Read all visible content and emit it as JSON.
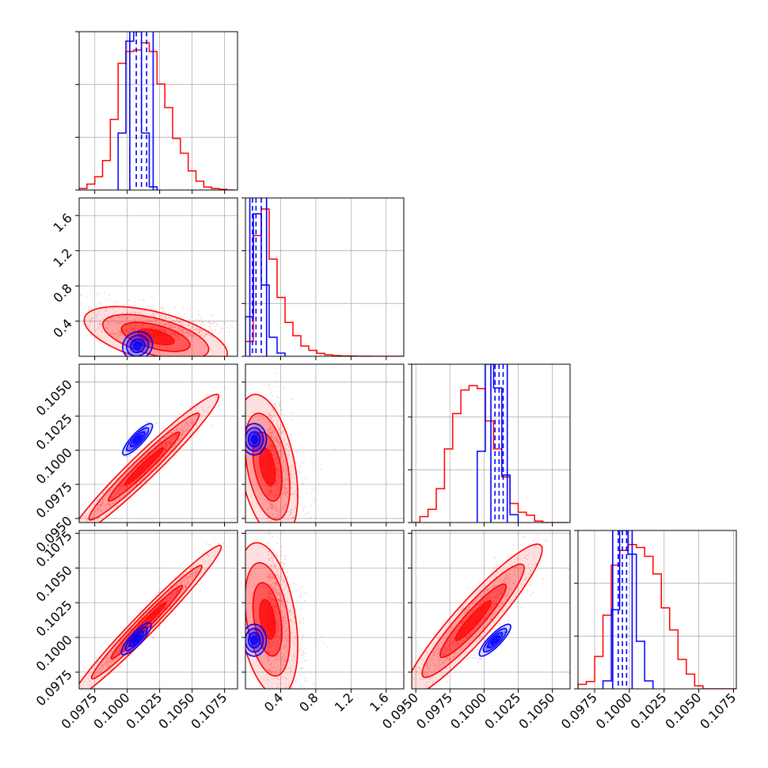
{
  "chart_data": {
    "type": "scatter",
    "layout": "corner-plot",
    "n_parameters": 4,
    "grid": true,
    "colors": {
      "sample_a": "#ff0000",
      "sample_b": "#0000ff",
      "quantile_lines": "#0000ff"
    },
    "axes": [
      {
        "label": "",
        "range": [
          0.0963,
          0.1085
        ],
        "ticks": [
          0.0975,
          0.1,
          0.1025,
          0.105,
          0.1075
        ],
        "tick_labels": [
          "0.0975",
          "0.1000",
          "0.1025",
          "0.1050",
          "0.1075"
        ]
      },
      {
        "label": "",
        "range": [
          0.0,
          1.8
        ],
        "ticks": [
          0.4,
          0.8,
          1.2,
          1.6
        ],
        "tick_labels": [
          "0.4",
          "0.8",
          "1.2",
          "1.6"
        ]
      },
      {
        "label": "",
        "range": [
          0.0947,
          0.1063
        ],
        "ticks": [
          0.095,
          0.0975,
          0.1,
          0.1025,
          0.105
        ],
        "tick_labels": [
          "0.0950",
          "0.0975",
          "0.1000",
          "0.1025",
          "0.1050"
        ]
      },
      {
        "label": "",
        "range": [
          0.0963,
          0.1077
        ],
        "ticks": [
          0.0975,
          0.1,
          0.1025,
          0.105,
          0.1075
        ],
        "tick_labels": [
          "0.0975",
          "0.1000",
          "0.1025",
          "0.1050",
          "0.1075"
        ]
      }
    ],
    "histograms": [
      {
        "param": 0,
        "red": {
          "edges": [
            0.0963,
            0.0969,
            0.0975,
            0.0981,
            0.0987,
            0.0993,
            0.0999,
            0.1005,
            0.1011,
            0.1017,
            0.1023,
            0.1029,
            0.1035,
            0.1041,
            0.1047,
            0.1053,
            0.1059,
            0.1065,
            0.1071,
            0.1077,
            0.1083
          ],
          "counts": [
            0.01,
            0.04,
            0.09,
            0.2,
            0.48,
            0.86,
            0.94,
            0.95,
            1.0,
            0.94,
            0.72,
            0.56,
            0.35,
            0.25,
            0.13,
            0.06,
            0.02,
            0.01,
            0.005,
            0.0
          ]
        },
        "blue": {
          "edges": [
            0.0993,
            0.0999,
            0.1005,
            0.1011,
            0.1017,
            0.1023
          ],
          "counts": [
            0.36,
            0.94,
            1.0,
            0.36,
            0.02
          ]
        },
        "quantiles": [
          0.1002,
          0.1007,
          0.1011,
          0.1015,
          0.102
        ]
      },
      {
        "param": 1,
        "red": {
          "edges": [
            0.0,
            0.09,
            0.18,
            0.27,
            0.36,
            0.45,
            0.54,
            0.63,
            0.72,
            0.81,
            0.9,
            0.99,
            1.08,
            1.17,
            1.26,
            1.35,
            1.44,
            1.53,
            1.62,
            1.71,
            1.8
          ],
          "counts": [
            0.1,
            0.82,
            1.0,
            0.66,
            0.4,
            0.23,
            0.14,
            0.07,
            0.04,
            0.02,
            0.01,
            0.005,
            0.003,
            0.002,
            0.001,
            0.001,
            0.0,
            0.0,
            0.0,
            0.0
          ]
        },
        "blue": {
          "edges": [
            0.0,
            0.09,
            0.18,
            0.27,
            0.36,
            0.45
          ],
          "counts": [
            0.25,
            0.9,
            0.45,
            0.12,
            0.02
          ]
        },
        "quantiles": [
          0.05,
          0.08,
          0.12,
          0.18,
          0.24
        ]
      },
      {
        "param": 2,
        "red": {
          "edges": [
            0.0947,
            0.0953,
            0.0959,
            0.0965,
            0.0971,
            0.0977,
            0.0983,
            0.0989,
            0.0995,
            0.1001,
            0.1007,
            0.1013,
            0.1019,
            0.1025,
            0.1031,
            0.1037,
            0.1043,
            0.1049,
            0.1055,
            0.1061
          ],
          "counts": [
            0.0,
            0.04,
            0.09,
            0.23,
            0.5,
            0.74,
            0.9,
            0.93,
            0.91,
            0.69,
            0.5,
            0.31,
            0.13,
            0.07,
            0.05,
            0.01,
            0.0,
            0.0,
            0.0
          ]
        },
        "blue": {
          "edges": [
            0.0995,
            0.1001,
            0.1007,
            0.1013,
            0.1019,
            0.1025
          ],
          "counts": [
            0.45,
            1.0,
            0.85,
            0.3,
            0.05
          ]
        },
        "quantiles": [
          0.1005,
          0.1008,
          0.1011,
          0.1014,
          0.1017
        ]
      },
      {
        "param": 3,
        "red": {
          "edges": [
            0.0963,
            0.0969,
            0.0975,
            0.0981,
            0.0987,
            0.0993,
            0.0999,
            0.1005,
            0.1011,
            0.1017,
            0.1023,
            0.1029,
            0.1035,
            0.1041,
            0.1047,
            0.1053,
            0.1059,
            0.1065,
            0.1071,
            0.1077
          ],
          "counts": [
            0.03,
            0.05,
            0.22,
            0.5,
            0.84,
            0.94,
            0.98,
            0.96,
            0.9,
            0.78,
            0.55,
            0.4,
            0.2,
            0.1,
            0.02,
            0.0,
            0.0,
            0.0,
            0.0
          ]
        },
        "blue": {
          "edges": [
            0.0981,
            0.0987,
            0.0993,
            0.0999,
            0.1005,
            0.1011,
            0.1017
          ],
          "counts": [
            0.05,
            0.5,
            1.0,
            0.85,
            0.3,
            0.05
          ]
        },
        "quantiles": [
          0.0988,
          0.0992,
          0.0995,
          0.0998,
          0.1002
        ]
      }
    ],
    "pairs": [
      {
        "x_param": 0,
        "y_param": 1,
        "red": {
          "center": [
            0.1022,
            0.22
          ],
          "sigma": [
            0.0024,
            0.15
          ],
          "corr": -0.55
        },
        "blue": {
          "center": [
            0.1008,
            0.12
          ],
          "sigma": [
            0.0005,
            0.07
          ],
          "corr": 0.1
        }
      },
      {
        "x_param": 0,
        "y_param": 2,
        "red": {
          "center": [
            0.1013,
            0.0988
          ],
          "sigma": [
            0.0025,
            0.0023
          ],
          "corr": 0.97
        },
        "blue": {
          "center": [
            0.1008,
            0.1008
          ],
          "sigma": [
            0.0005,
            0.0005
          ],
          "corr": 0.85
        }
      },
      {
        "x_param": 1,
        "y_param": 2,
        "red": {
          "center": [
            0.25,
            0.0988
          ],
          "sigma": [
            0.15,
            0.0023
          ],
          "corr": -0.4
        },
        "blue": {
          "center": [
            0.1,
            0.1008
          ],
          "sigma": [
            0.06,
            0.0005
          ],
          "corr": 0.0
        }
      },
      {
        "x_param": 0,
        "y_param": 3,
        "red": {
          "center": [
            0.1015,
            0.1011
          ],
          "sigma": [
            0.0025,
            0.0024
          ],
          "corr": 0.98
        },
        "blue": {
          "center": [
            0.1007,
            0.0999
          ],
          "sigma": [
            0.0005,
            0.0005
          ],
          "corr": 0.85
        }
      },
      {
        "x_param": 1,
        "y_param": 3,
        "red": {
          "center": [
            0.25,
            0.1013
          ],
          "sigma": [
            0.15,
            0.0024
          ],
          "corr": -0.35
        },
        "blue": {
          "center": [
            0.1,
            0.0998
          ],
          "sigma": [
            0.06,
            0.0005
          ],
          "corr": 0.0
        }
      },
      {
        "x_param": 2,
        "y_param": 3,
        "red": {
          "center": [
            0.0992,
            0.1012
          ],
          "sigma": [
            0.0022,
            0.0024
          ],
          "corr": 0.93
        },
        "blue": {
          "center": [
            0.1008,
            0.0998
          ],
          "sigma": [
            0.0005,
            0.0005
          ],
          "corr": 0.85
        }
      }
    ]
  }
}
